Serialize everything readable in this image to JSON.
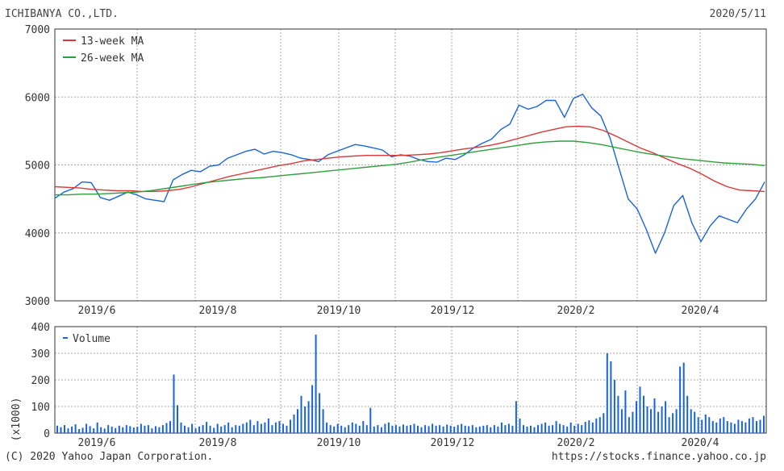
{
  "header": {
    "company": "ICHIBANYA CO.,LTD.",
    "date": "2020/5/11"
  },
  "footer": {
    "copyright": "(C) 2020 Yahoo Japan Corporation.",
    "url": "https://stocks.finance.yahoo.co.jp"
  },
  "colors": {
    "price": "#1a64d6",
    "ma13": "#d63a3a",
    "ma26": "#2f9e3e",
    "volume": "#1a64d6",
    "grid": "#aaaaaa"
  },
  "chart_data": [
    {
      "type": "line",
      "panel": "price",
      "x_ticks": [
        "2019/6",
        "2019/8",
        "2019/10",
        "2019/12",
        "2020/2",
        "2020/4"
      ],
      "y_ticks": [
        "3000",
        "4000",
        "5000",
        "6000",
        "7000"
      ],
      "ylim": [
        3000,
        7000
      ],
      "grid": true,
      "legend_position": "top-left",
      "series": [
        {
          "name": "",
          "key": "price",
          "values": [
            4510,
            4600,
            4650,
            4750,
            4740,
            4520,
            4480,
            4540,
            4600,
            4560,
            4500,
            4480,
            4460,
            4780,
            4860,
            4920,
            4900,
            4980,
            5000,
            5100,
            5150,
            5200,
            5230,
            5160,
            5200,
            5180,
            5150,
            5100,
            5080,
            5050,
            5150,
            5200,
            5250,
            5300,
            5280,
            5250,
            5220,
            5120,
            5150,
            5130,
            5080,
            5050,
            5040,
            5100,
            5080,
            5150,
            5250,
            5320,
            5380,
            5520,
            5600,
            5880,
            5820,
            5860,
            5950,
            5950,
            5700,
            5980,
            6040,
            5840,
            5720,
            5400,
            4950,
            4500,
            4350,
            4050,
            3700,
            4000,
            4400,
            4550,
            4150,
            3870,
            4100,
            4250,
            4200,
            4150,
            4350,
            4500,
            4750
          ]
        },
        {
          "name": "13-week MA",
          "key": "ma13",
          "values": [
            4680,
            4670,
            4660,
            4640,
            4630,
            4620,
            4620,
            4610,
            4610,
            4620,
            4640,
            4680,
            4730,
            4780,
            4830,
            4870,
            4910,
            4950,
            4990,
            5020,
            5060,
            5080,
            5100,
            5120,
            5130,
            5140,
            5140,
            5140,
            5140,
            5150,
            5160,
            5180,
            5210,
            5240,
            5260,
            5290,
            5330,
            5380,
            5430,
            5480,
            5520,
            5560,
            5570,
            5560,
            5510,
            5430,
            5340,
            5250,
            5180,
            5100,
            5020,
            4950,
            4860,
            4760,
            4680,
            4630,
            4620,
            4610
          ]
        },
        {
          "name": "26-week MA",
          "key": "ma26",
          "values": [
            4560,
            4560,
            4570,
            4570,
            4580,
            4590,
            4600,
            4620,
            4650,
            4680,
            4710,
            4740,
            4760,
            4780,
            4800,
            4810,
            4830,
            4850,
            4870,
            4890,
            4910,
            4930,
            4950,
            4970,
            4990,
            5010,
            5040,
            5080,
            5110,
            5140,
            5170,
            5200,
            5230,
            5260,
            5290,
            5320,
            5340,
            5350,
            5350,
            5330,
            5300,
            5260,
            5220,
            5180,
            5150,
            5120,
            5090,
            5070,
            5050,
            5030,
            5020,
            5010,
            4990
          ]
        }
      ]
    },
    {
      "type": "bar",
      "panel": "volume",
      "x_ticks": [
        "2019/6",
        "2019/8",
        "2019/10",
        "2019/12",
        "2020/2",
        "2020/4"
      ],
      "y_ticks": [
        "0",
        "100",
        "200",
        "300",
        "400"
      ],
      "ylim": [
        0,
        400
      ],
      "ylabel": "(x1000)",
      "grid": true,
      "legend_position": "top-left",
      "series": [
        {
          "name": "Volume",
          "key": "volume",
          "values": [
            28,
            22,
            30,
            18,
            25,
            33,
            15,
            20,
            35,
            26,
            18,
            40,
            22,
            17,
            30,
            24,
            19,
            28,
            22,
            30,
            26,
            21,
            24,
            35,
            28,
            30,
            18,
            26,
            22,
            30,
            38,
            45,
            220,
            105,
            40,
            28,
            22,
            35,
            18,
            25,
            30,
            42,
            28,
            20,
            35,
            25,
            30,
            40,
            22,
            30,
            28,
            35,
            40,
            50,
            30,
            45,
            35,
            40,
            55,
            30,
            40,
            45,
            35,
            28,
            50,
            70,
            90,
            140,
            100,
            120,
            180,
            370,
            150,
            90,
            40,
            30,
            25,
            35,
            28,
            22,
            30,
            40,
            35,
            28,
            45,
            30,
            95,
            25,
            30,
            22,
            35,
            40,
            28,
            30,
            25,
            32,
            28,
            30,
            35,
            28,
            22,
            30,
            26,
            35,
            28,
            30,
            25,
            32,
            28,
            24,
            30,
            35,
            28,
            26,
            30,
            22,
            25,
            28,
            30,
            22,
            30,
            25,
            40,
            30,
            35,
            28,
            120,
            55,
            30,
            25,
            28,
            22,
            30,
            35,
            40,
            28,
            30,
            45,
            35,
            30,
            25,
            40,
            28,
            35,
            30,
            42,
            48,
            40,
            55,
            60,
            75,
            300,
            270,
            200,
            140,
            90,
            160,
            60,
            80,
            120,
            175,
            140,
            100,
            90,
            130,
            80,
            100,
            120,
            60,
            75,
            90,
            250,
            265,
            140,
            90,
            80,
            60,
            50,
            70,
            60,
            45,
            40,
            55,
            60,
            45,
            40,
            35,
            50,
            45,
            40,
            55,
            60,
            45,
            50,
            65
          ]
        }
      ]
    }
  ]
}
